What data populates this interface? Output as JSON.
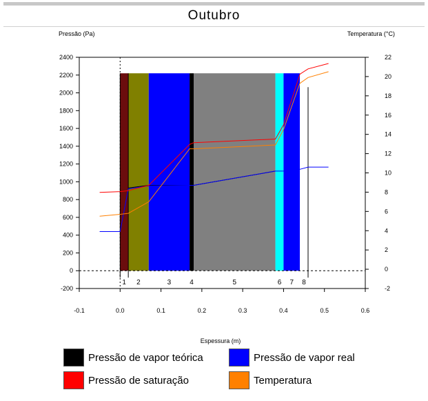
{
  "chart_data": {
    "type": "line",
    "title": "Outubro",
    "ylabel_left": "Pressão (Pa)",
    "ylabel_right": "Temperatura (°C)",
    "xlabel": "Espessura (m)",
    "xlim": [
      -0.1,
      0.6
    ],
    "ylim_left": [
      -200,
      2400
    ],
    "ylim_right": [
      -2,
      22
    ],
    "x_ticks": [
      "-0.1",
      "0.0",
      "0.1",
      "0.2",
      "0.3",
      "0.4",
      "0.5",
      "0.6"
    ],
    "y_ticks_left": [
      "2400",
      "2200",
      "2000",
      "1800",
      "1600",
      "1400",
      "1200",
      "1000",
      "800",
      "600",
      "400",
      "200",
      "0",
      "-200"
    ],
    "y_ticks_right": [
      "22",
      "20",
      "18",
      "16",
      "14",
      "12",
      "10",
      "8",
      "6",
      "4",
      "2",
      "0",
      "-2"
    ],
    "wall_top": 2220,
    "layers": [
      {
        "label": "1",
        "x0": 0.0,
        "x1": 0.02,
        "color": "#6b0d0d"
      },
      {
        "label": "2",
        "x0": 0.02,
        "x1": 0.07,
        "color": "#808000"
      },
      {
        "label": "3",
        "x0": 0.07,
        "x1": 0.17,
        "color": "#0000ff"
      },
      {
        "label": "4",
        "x0": 0.17,
        "x1": 0.18,
        "color": "#000000"
      },
      {
        "label": "5",
        "x0": 0.18,
        "x1": 0.38,
        "color": "#808080"
      },
      {
        "label": "6",
        "x0": 0.38,
        "x1": 0.4,
        "color": "#00ffff"
      },
      {
        "label": "7",
        "x0": 0.4,
        "x1": 0.44,
        "color": "#0000ff"
      },
      {
        "label": "8",
        "x0": 0.44,
        "x1": 0.46,
        "color": "#ffffff"
      }
    ],
    "series": [
      {
        "name": "Pressão de vapor teórica",
        "color": "#000000",
        "axis": "left",
        "x": [
          0.02,
          0.07,
          0.17,
          0.18,
          0.38
        ],
        "y": [
          930,
          960,
          960,
          960,
          1120
        ]
      },
      {
        "name": "Pressão de vapor real",
        "color": "#0000ff",
        "axis": "left",
        "x": [
          -0.05,
          0.0,
          0.02,
          0.07,
          0.17,
          0.18,
          0.38,
          0.4,
          0.44,
          0.46,
          0.51
        ],
        "y": [
          440,
          440,
          920,
          955,
          960,
          960,
          1120,
          1120,
          1140,
          1165,
          1165
        ]
      },
      {
        "name": "Pressão de saturação",
        "color": "#ff0000",
        "axis": "left",
        "x": [
          -0.05,
          0.0,
          0.02,
          0.07,
          0.17,
          0.18,
          0.38,
          0.4,
          0.44,
          0.46,
          0.51
        ],
        "y": [
          880,
          890,
          900,
          960,
          1420,
          1440,
          1480,
          1640,
          2210,
          2270,
          2330
        ]
      },
      {
        "name": "Temperatura",
        "color": "#ff8000",
        "axis": "right",
        "x": [
          -0.05,
          0.0,
          0.02,
          0.07,
          0.17,
          0.18,
          0.38,
          0.4,
          0.44,
          0.46,
          0.51
        ],
        "y": [
          5.5,
          5.7,
          5.8,
          7.0,
          12.5,
          12.5,
          12.9,
          14.5,
          19.3,
          19.9,
          20.5
        ]
      }
    ],
    "legend": [
      {
        "label": "Pressão de vapor teórica",
        "color": "#000000"
      },
      {
        "label": "Pressão de vapor real",
        "color": "#0000ff"
      },
      {
        "label": "Pressão de saturação",
        "color": "#ff0000"
      },
      {
        "label": "Temperatura",
        "color": "#ff8000"
      }
    ]
  }
}
